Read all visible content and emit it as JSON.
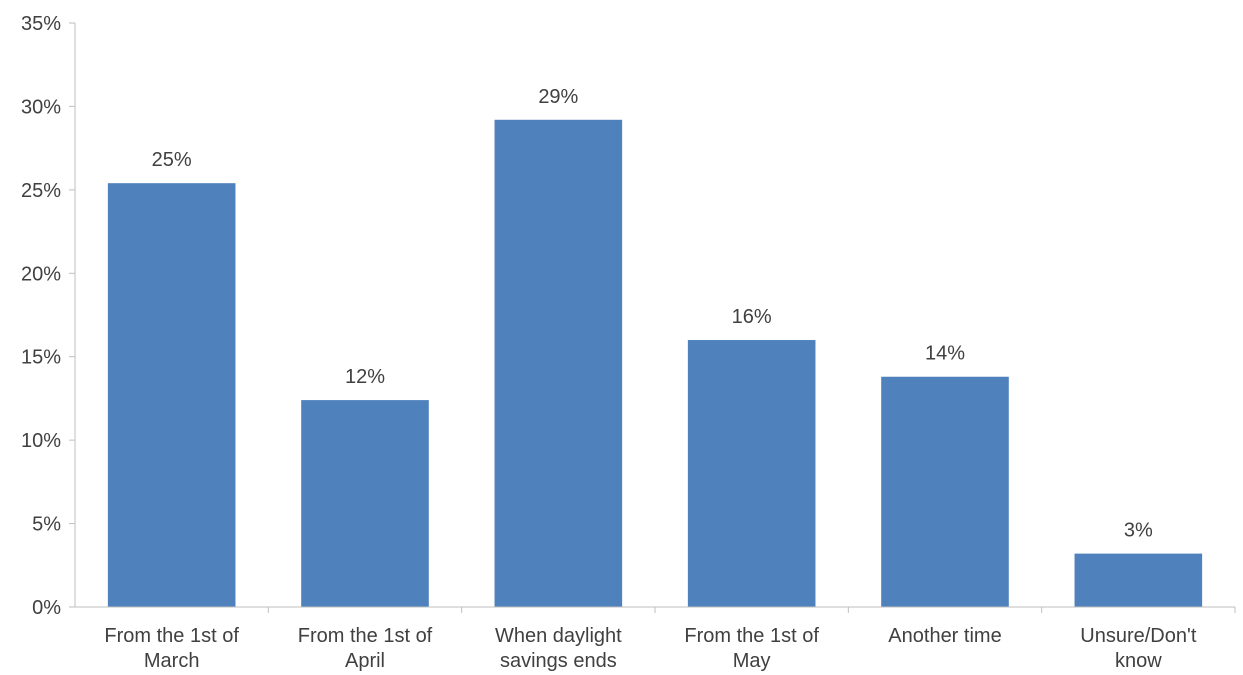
{
  "chart_data": {
    "type": "bar",
    "categories": [
      [
        "From the 1st of",
        "March"
      ],
      [
        "From the 1st of",
        "April"
      ],
      [
        "When daylight",
        "savings ends"
      ],
      [
        "From the  1st of",
        "May"
      ],
      [
        "Another time"
      ],
      [
        "Unsure/Don't",
        "know"
      ]
    ],
    "values": [
      25.4,
      12.4,
      29.2,
      16.0,
      13.8,
      3.2
    ],
    "data_labels": [
      "25%",
      "12%",
      "29%",
      "16%",
      "14%",
      "3%"
    ],
    "yticks": [
      0,
      5,
      10,
      15,
      20,
      25,
      30,
      35
    ],
    "ytick_labels": [
      "0%",
      "5%",
      "10%",
      "15%",
      "20%",
      "25%",
      "30%",
      "35%"
    ],
    "ylim": [
      0,
      35
    ],
    "bar_color": "#4f81bd",
    "grid": false,
    "legend": "none",
    "title": "",
    "xlabel": "",
    "ylabel": ""
  }
}
